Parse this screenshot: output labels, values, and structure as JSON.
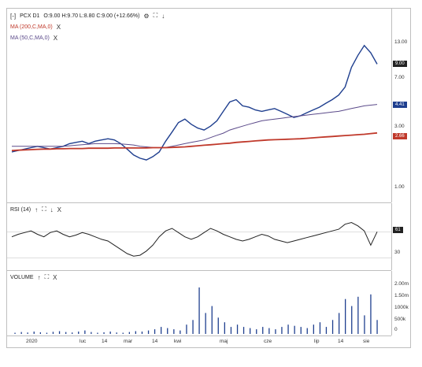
{
  "price_panel": {
    "box_icon": "[-]",
    "ticker": "PCX D1",
    "ohlc": "O:9.00 H:9.70 L:8.80 C:9.00 (+12.66%)",
    "ma200": "MA (200,C,MA,0)",
    "ma50": "MA (50,C,MA,0)",
    "close_icon": "X",
    "axis_ticks": [
      "13.00",
      "7.00",
      "3.00",
      "1.00"
    ],
    "badges": {
      "last": "9.00",
      "ma50": "4.41",
      "ma200": "2.66"
    }
  },
  "rsi_panel": {
    "label": "RSI (14)",
    "close_icon": "X",
    "axis_ticks": [
      "30"
    ],
    "badge": "61"
  },
  "volume_panel": {
    "label": "VOLUME",
    "close_icon": "X",
    "axis_ticks": [
      "2.00m",
      "1.50m",
      "1000k",
      "500k",
      "0"
    ]
  },
  "x_axis": [
    "2020",
    "luc",
    "14",
    "mar",
    "14",
    "kwi",
    "maj",
    "cze",
    "lip",
    "14",
    "sie"
  ],
  "colors": {
    "price": "#1f3f8f",
    "ma200": "#c0392b",
    "ma50": "#5b4a8a",
    "badge_last": "#222222",
    "badge_ma50": "#1f3f8f",
    "badge_ma200": "#c0392b"
  },
  "chart_data": [
    {
      "type": "line",
      "title": "PCX D1",
      "ylim": [
        1,
        13
      ],
      "series": [
        {
          "name": "PCX D1",
          "values": [
            1.9,
            1.95,
            2.0,
            2.05,
            2.1,
            2.05,
            2.0,
            2.05,
            2.1,
            2.2,
            2.25,
            2.3,
            2.2,
            2.3,
            2.35,
            2.4,
            2.35,
            2.2,
            2.0,
            1.8,
            1.7,
            1.65,
            1.75,
            1.9,
            2.3,
            2.7,
            3.2,
            3.4,
            3.1,
            2.9,
            2.8,
            3.0,
            3.3,
            3.9,
            4.6,
            4.8,
            4.3,
            4.2,
            4.0,
            3.9,
            4.0,
            4.1,
            3.9,
            3.7,
            3.5,
            3.6,
            3.8,
            4.0,
            4.2,
            4.5,
            4.8,
            5.2,
            6.0,
            8.5,
            10.5,
            12.5,
            11.0,
            9.0
          ]
        },
        {
          "name": "MA (50,C,MA,0)",
          "values": [
            2.1,
            2.1,
            2.1,
            2.1,
            2.1,
            2.1,
            2.1,
            2.1,
            2.1,
            2.12,
            2.14,
            2.16,
            2.18,
            2.2,
            2.2,
            2.2,
            2.2,
            2.19,
            2.17,
            2.15,
            2.1,
            2.08,
            2.06,
            2.05,
            2.06,
            2.1,
            2.15,
            2.2,
            2.25,
            2.3,
            2.35,
            2.45,
            2.55,
            2.65,
            2.8,
            2.9,
            3.0,
            3.1,
            3.2,
            3.3,
            3.35,
            3.4,
            3.45,
            3.5,
            3.55,
            3.6,
            3.65,
            3.7,
            3.75,
            3.8,
            3.85,
            3.9,
            4.0,
            4.1,
            4.2,
            4.3,
            4.35,
            4.41
          ]
        },
        {
          "name": "MA (200,C,MA,0)",
          "values": [
            1.95,
            1.96,
            1.97,
            1.98,
            1.99,
            2.0,
            2.0,
            2.01,
            2.01,
            2.02,
            2.02,
            2.02,
            2.03,
            2.03,
            2.03,
            2.03,
            2.04,
            2.04,
            2.04,
            2.04,
            2.04,
            2.04,
            2.05,
            2.05,
            2.05,
            2.06,
            2.07,
            2.08,
            2.1,
            2.12,
            2.14,
            2.16,
            2.18,
            2.2,
            2.22,
            2.25,
            2.27,
            2.29,
            2.31,
            2.33,
            2.35,
            2.36,
            2.37,
            2.38,
            2.39,
            2.4,
            2.42,
            2.44,
            2.46,
            2.48,
            2.5,
            2.52,
            2.54,
            2.56,
            2.58,
            2.6,
            2.63,
            2.66
          ]
        }
      ]
    },
    {
      "type": "line",
      "title": "RSI (14)",
      "series": [
        {
          "name": "RSI (14)",
          "values": [
            55,
            58,
            60,
            62,
            58,
            55,
            60,
            62,
            58,
            55,
            57,
            60,
            58,
            55,
            52,
            50,
            45,
            40,
            35,
            32,
            33,
            38,
            45,
            55,
            62,
            65,
            60,
            55,
            52,
            55,
            60,
            65,
            62,
            58,
            55,
            52,
            50,
            52,
            55,
            58,
            56,
            52,
            50,
            48,
            50,
            52,
            54,
            56,
            58,
            60,
            62,
            64,
            70,
            72,
            68,
            62,
            45,
            61
          ]
        }
      ]
    },
    {
      "type": "bar",
      "title": "VOLUME",
      "values": [
        0.05,
        0.08,
        0.06,
        0.1,
        0.07,
        0.05,
        0.09,
        0.12,
        0.08,
        0.06,
        0.1,
        0.15,
        0.08,
        0.05,
        0.07,
        0.1,
        0.06,
        0.05,
        0.08,
        0.12,
        0.1,
        0.15,
        0.2,
        0.3,
        0.25,
        0.2,
        0.15,
        0.4,
        0.6,
        2.0,
        0.9,
        1.2,
        0.7,
        0.5,
        0.3,
        0.4,
        0.3,
        0.25,
        0.2,
        0.3,
        0.25,
        0.2,
        0.3,
        0.4,
        0.35,
        0.3,
        0.25,
        0.4,
        0.5,
        0.3,
        0.6,
        0.9,
        1.5,
        1.2,
        1.6,
        0.8,
        1.7,
        0.6
      ]
    }
  ]
}
